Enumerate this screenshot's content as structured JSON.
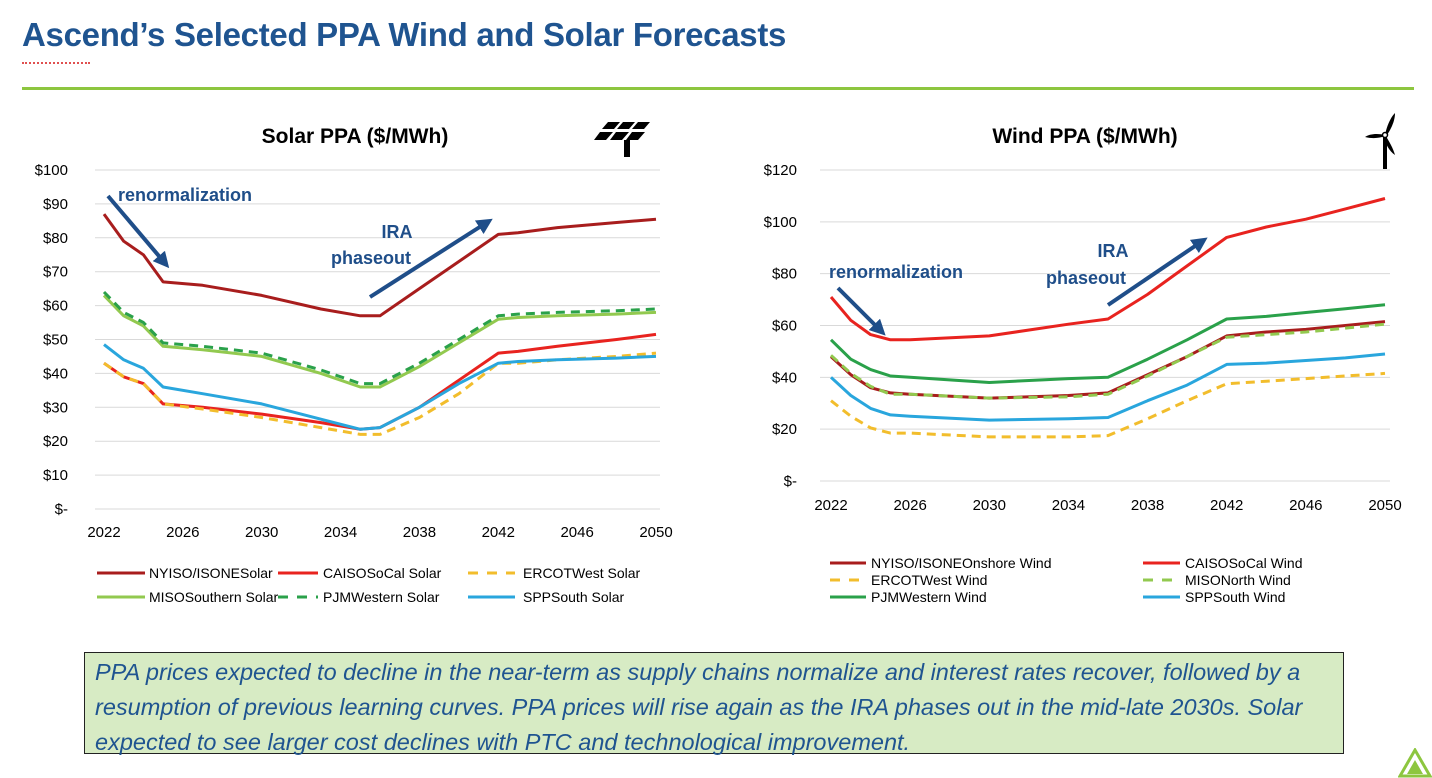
{
  "page": {
    "title": "Ascend’s Selected PPA Wind and Solar Forecasts",
    "note": "PPA prices expected to decline in the near-term as supply chains normalize and interest rates recover, followed by a resumption of previous learning curves. PPA prices will rise again as the IRA phases out in the mid-late 2030s. Solar expected to see larger cost declines with PTC and technological improvement.",
    "accent_color": "#8dc63f",
    "title_color": "#1f5490"
  },
  "chart_data": [
    {
      "type": "line",
      "title": "Solar PPA ($/MWh)",
      "icon": "solar-panel-icon",
      "xlim": [
        2022,
        2050
      ],
      "ylim": [
        0,
        100
      ],
      "x_ticks": [
        "2022",
        "2026",
        "2030",
        "2034",
        "2038",
        "2042",
        "2046",
        "2050"
      ],
      "y_ticks": [
        "$-",
        "$10",
        "$20",
        "$30",
        "$40",
        "$50",
        "$60",
        "$70",
        "$80",
        "$90",
        "$100"
      ],
      "grid": true,
      "legend": "bottom",
      "annotations": [
        "renormalization",
        "IRA",
        "phaseout"
      ],
      "x": [
        2022,
        2023,
        2024,
        2025,
        2027,
        2030,
        2033,
        2035,
        2036,
        2038,
        2040,
        2042,
        2043,
        2045,
        2048,
        2050
      ],
      "series": [
        {
          "name": "NYISO/ISONESolar",
          "color": "#a81d1d",
          "dash": false,
          "values": [
            87,
            79,
            75,
            67,
            66,
            63,
            59,
            57,
            57,
            65,
            73,
            81,
            81.5,
            83,
            84.5,
            85.5
          ]
        },
        {
          "name": "CAISOSoCal Solar",
          "color": "#e8231f",
          "dash": false,
          "values": [
            43,
            39,
            37,
            31,
            30,
            28,
            25.5,
            23.5,
            24,
            30,
            38,
            46,
            46.5,
            48,
            50,
            51.5
          ]
        },
        {
          "name": "ERCOTWest Solar",
          "color": "#f2bd2c",
          "dash": true,
          "values": [
            43,
            39,
            37,
            31,
            29.5,
            27,
            24,
            22,
            22,
            27,
            34,
            43,
            43,
            44,
            45,
            46
          ]
        },
        {
          "name": "MISOSouthern Solar",
          "color": "#92c94f",
          "dash": false,
          "values": [
            63,
            57,
            54,
            48,
            47,
            45,
            40,
            36,
            36,
            42,
            49,
            56,
            56.5,
            57,
            57.5,
            58
          ]
        },
        {
          "name": "PJMWestern Solar",
          "color": "#2aa14a",
          "dash": true,
          "values": [
            64,
            58,
            55,
            49,
            48,
            46,
            41,
            37,
            37,
            43,
            50,
            57,
            57.5,
            58,
            58.5,
            59
          ]
        },
        {
          "name": "SPPSouth Solar",
          "color": "#29a6dd",
          "dash": false,
          "values": [
            48.5,
            44,
            41.5,
            36,
            34,
            31,
            26.5,
            23.5,
            24,
            30,
            37,
            43,
            43.5,
            44,
            44.5,
            45
          ]
        }
      ]
    },
    {
      "type": "line",
      "title": "Wind PPA ($/MWh)",
      "icon": "wind-turbine-icon",
      "xlim": [
        2022,
        2050
      ],
      "ylim": [
        0,
        120
      ],
      "x_ticks": [
        "2022",
        "2026",
        "2030",
        "2034",
        "2038",
        "2042",
        "2046",
        "2050"
      ],
      "y_ticks": [
        "$-",
        "$20",
        "$40",
        "$60",
        "$80",
        "$100",
        "$120"
      ],
      "grid": true,
      "legend": "bottom",
      "annotations": [
        "renormalization",
        "IRA",
        "phaseout"
      ],
      "x": [
        2022,
        2023,
        2024,
        2025,
        2026,
        2030,
        2034,
        2036,
        2038,
        2040,
        2042,
        2044,
        2046,
        2048,
        2050
      ],
      "series": [
        {
          "name": "NYISO/ISONEOnshore Wind",
          "color": "#a81d1d",
          "dash": false,
          "values": [
            48,
            41,
            36,
            34,
            33.5,
            32,
            33,
            34,
            41,
            48,
            56,
            57.5,
            58.5,
            60,
            61.5
          ]
        },
        {
          "name": "CAISOSoCal Wind",
          "color": "#e8231f",
          "dash": false,
          "values": [
            71,
            62,
            56.5,
            54.5,
            54.5,
            56,
            60.5,
            62.5,
            72,
            83,
            94,
            98,
            101,
            105,
            109
          ]
        },
        {
          "name": "ERCOTWest Wind",
          "color": "#f2bd2c",
          "dash": true,
          "values": [
            31,
            25,
            20.5,
            18.5,
            18.5,
            17,
            17,
            17.5,
            24,
            31,
            37.5,
            38.5,
            39.5,
            40.5,
            41.5
          ]
        },
        {
          "name": "MISONorth Wind",
          "color": "#92c94f",
          "dash": true,
          "values": [
            48.5,
            41.5,
            36.5,
            33.5,
            33.5,
            32,
            32.5,
            33.5,
            40.5,
            48,
            55.5,
            56.5,
            57.5,
            59,
            60.5
          ]
        },
        {
          "name": "PJMWestern Wind",
          "color": "#2aa14a",
          "dash": false,
          "values": [
            54.5,
            47,
            43,
            40.5,
            40,
            38,
            39.5,
            40,
            47,
            54.5,
            62.5,
            63.5,
            65,
            66.5,
            68
          ]
        },
        {
          "name": "SPPSouth Wind",
          "color": "#29a6dd",
          "dash": false,
          "values": [
            40,
            33,
            28,
            25.5,
            25,
            23.5,
            24,
            24.5,
            31,
            37,
            45,
            45.5,
            46.5,
            47.5,
            49
          ]
        }
      ]
    }
  ]
}
